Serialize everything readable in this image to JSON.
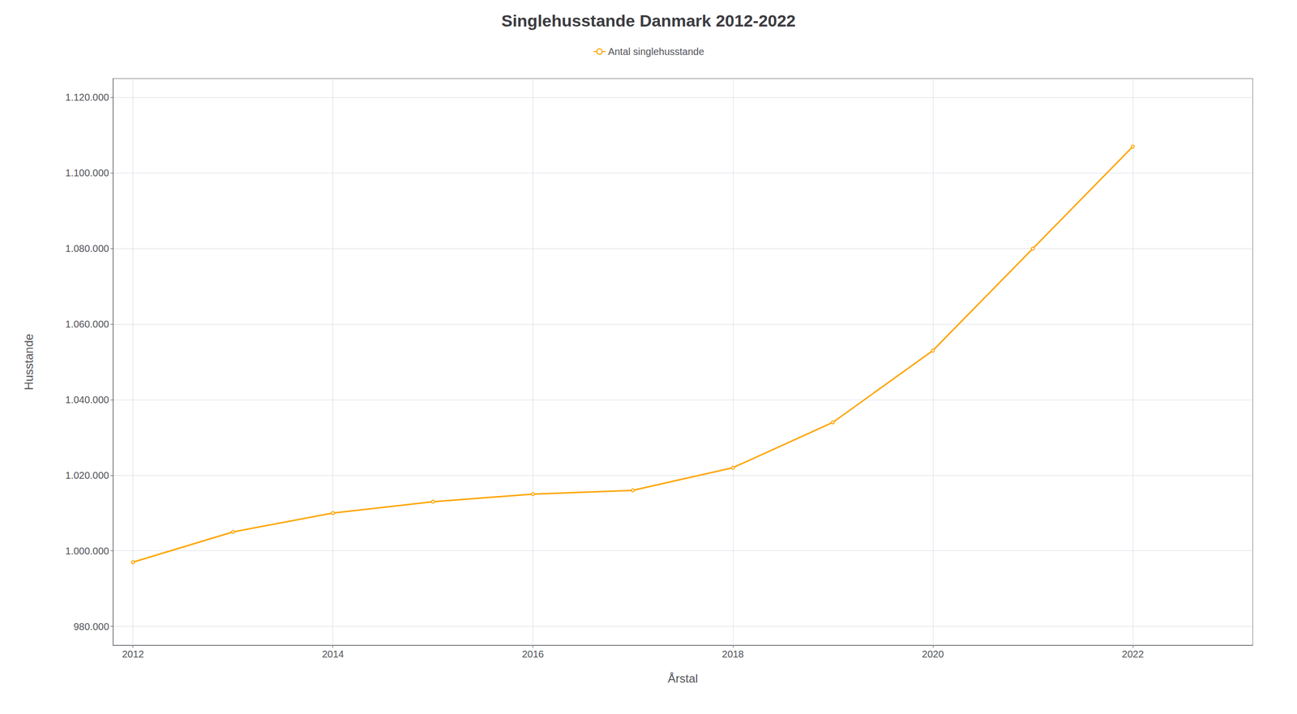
{
  "chart_data": {
    "type": "line",
    "title": "Singlehusstande Danmark 2012-2022",
    "xlabel": "Årstal",
    "ylabel": "Husstande",
    "x": [
      2012,
      2013,
      2014,
      2015,
      2016,
      2017,
      2018,
      2019,
      2020,
      2021,
      2022
    ],
    "series": [
      {
        "name": "Antal singlehusstande",
        "color": "#FFA500",
        "values": [
          997000,
          1005000,
          1010000,
          1013000,
          1015000,
          1016000,
          1022000,
          1034000,
          1053000,
          1080000,
          1107000
        ]
      }
    ],
    "xlim": [
      2011.8,
      2023.2
    ],
    "xticks": [
      2012,
      2014,
      2016,
      2018,
      2020,
      2022
    ],
    "ylim": [
      975000,
      1125000
    ],
    "yticks": [
      {
        "value": 980000,
        "label": "980.000"
      },
      {
        "value": 1000000,
        "label": "1.000.000"
      },
      {
        "value": 1020000,
        "label": "1.020.000"
      },
      {
        "value": 1040000,
        "label": "1.040.000"
      },
      {
        "value": 1060000,
        "label": "1.060.000"
      },
      {
        "value": 1080000,
        "label": "1.080.000"
      },
      {
        "value": 1100000,
        "label": "1.100.000"
      },
      {
        "value": 1120000,
        "label": "1.120.000"
      }
    ],
    "grid": true,
    "legend": "top"
  }
}
